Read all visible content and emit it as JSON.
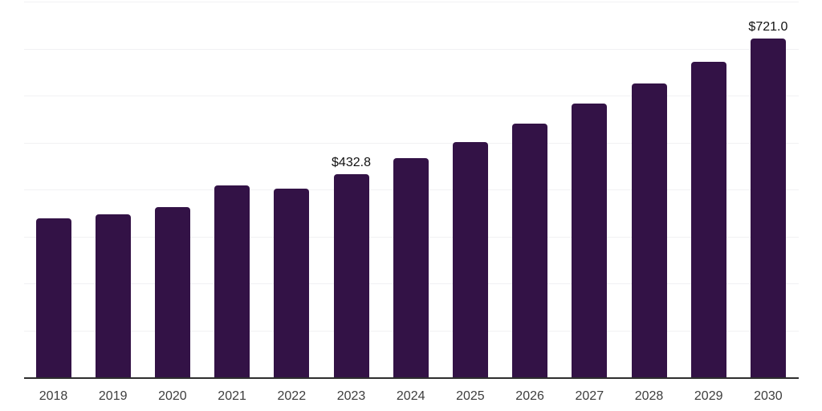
{
  "chart_data": {
    "type": "bar",
    "title": "",
    "xlabel": "",
    "ylabel": "",
    "categories": [
      "2018",
      "2019",
      "2020",
      "2021",
      "2022",
      "2023",
      "2024",
      "2025",
      "2026",
      "2027",
      "2028",
      "2029",
      "2030"
    ],
    "values": [
      337.8,
      346.4,
      361.7,
      408.8,
      402.0,
      432.8,
      466.1,
      500.3,
      539.6,
      582.4,
      625.2,
      671.3,
      721.0
    ],
    "data_labels": [
      {
        "category": "2023",
        "text": "$432.8"
      },
      {
        "category": "2030",
        "text": "$721.0"
      }
    ],
    "ylim": [
      0,
      800
    ],
    "grid": {
      "orientation": "horizontal",
      "interval": 100,
      "y_tick_labels_visible": false
    },
    "legend_position": "none"
  },
  "colors": {
    "background": "#ffffff",
    "bar": "#331246",
    "gridline": "#f1f1f3",
    "axis_line": "#2e2e2e",
    "data_label_text": "#111111",
    "tick_label_text": "#3d3d3d"
  },
  "layout_values": {
    "note_visible_text_only": true
  }
}
